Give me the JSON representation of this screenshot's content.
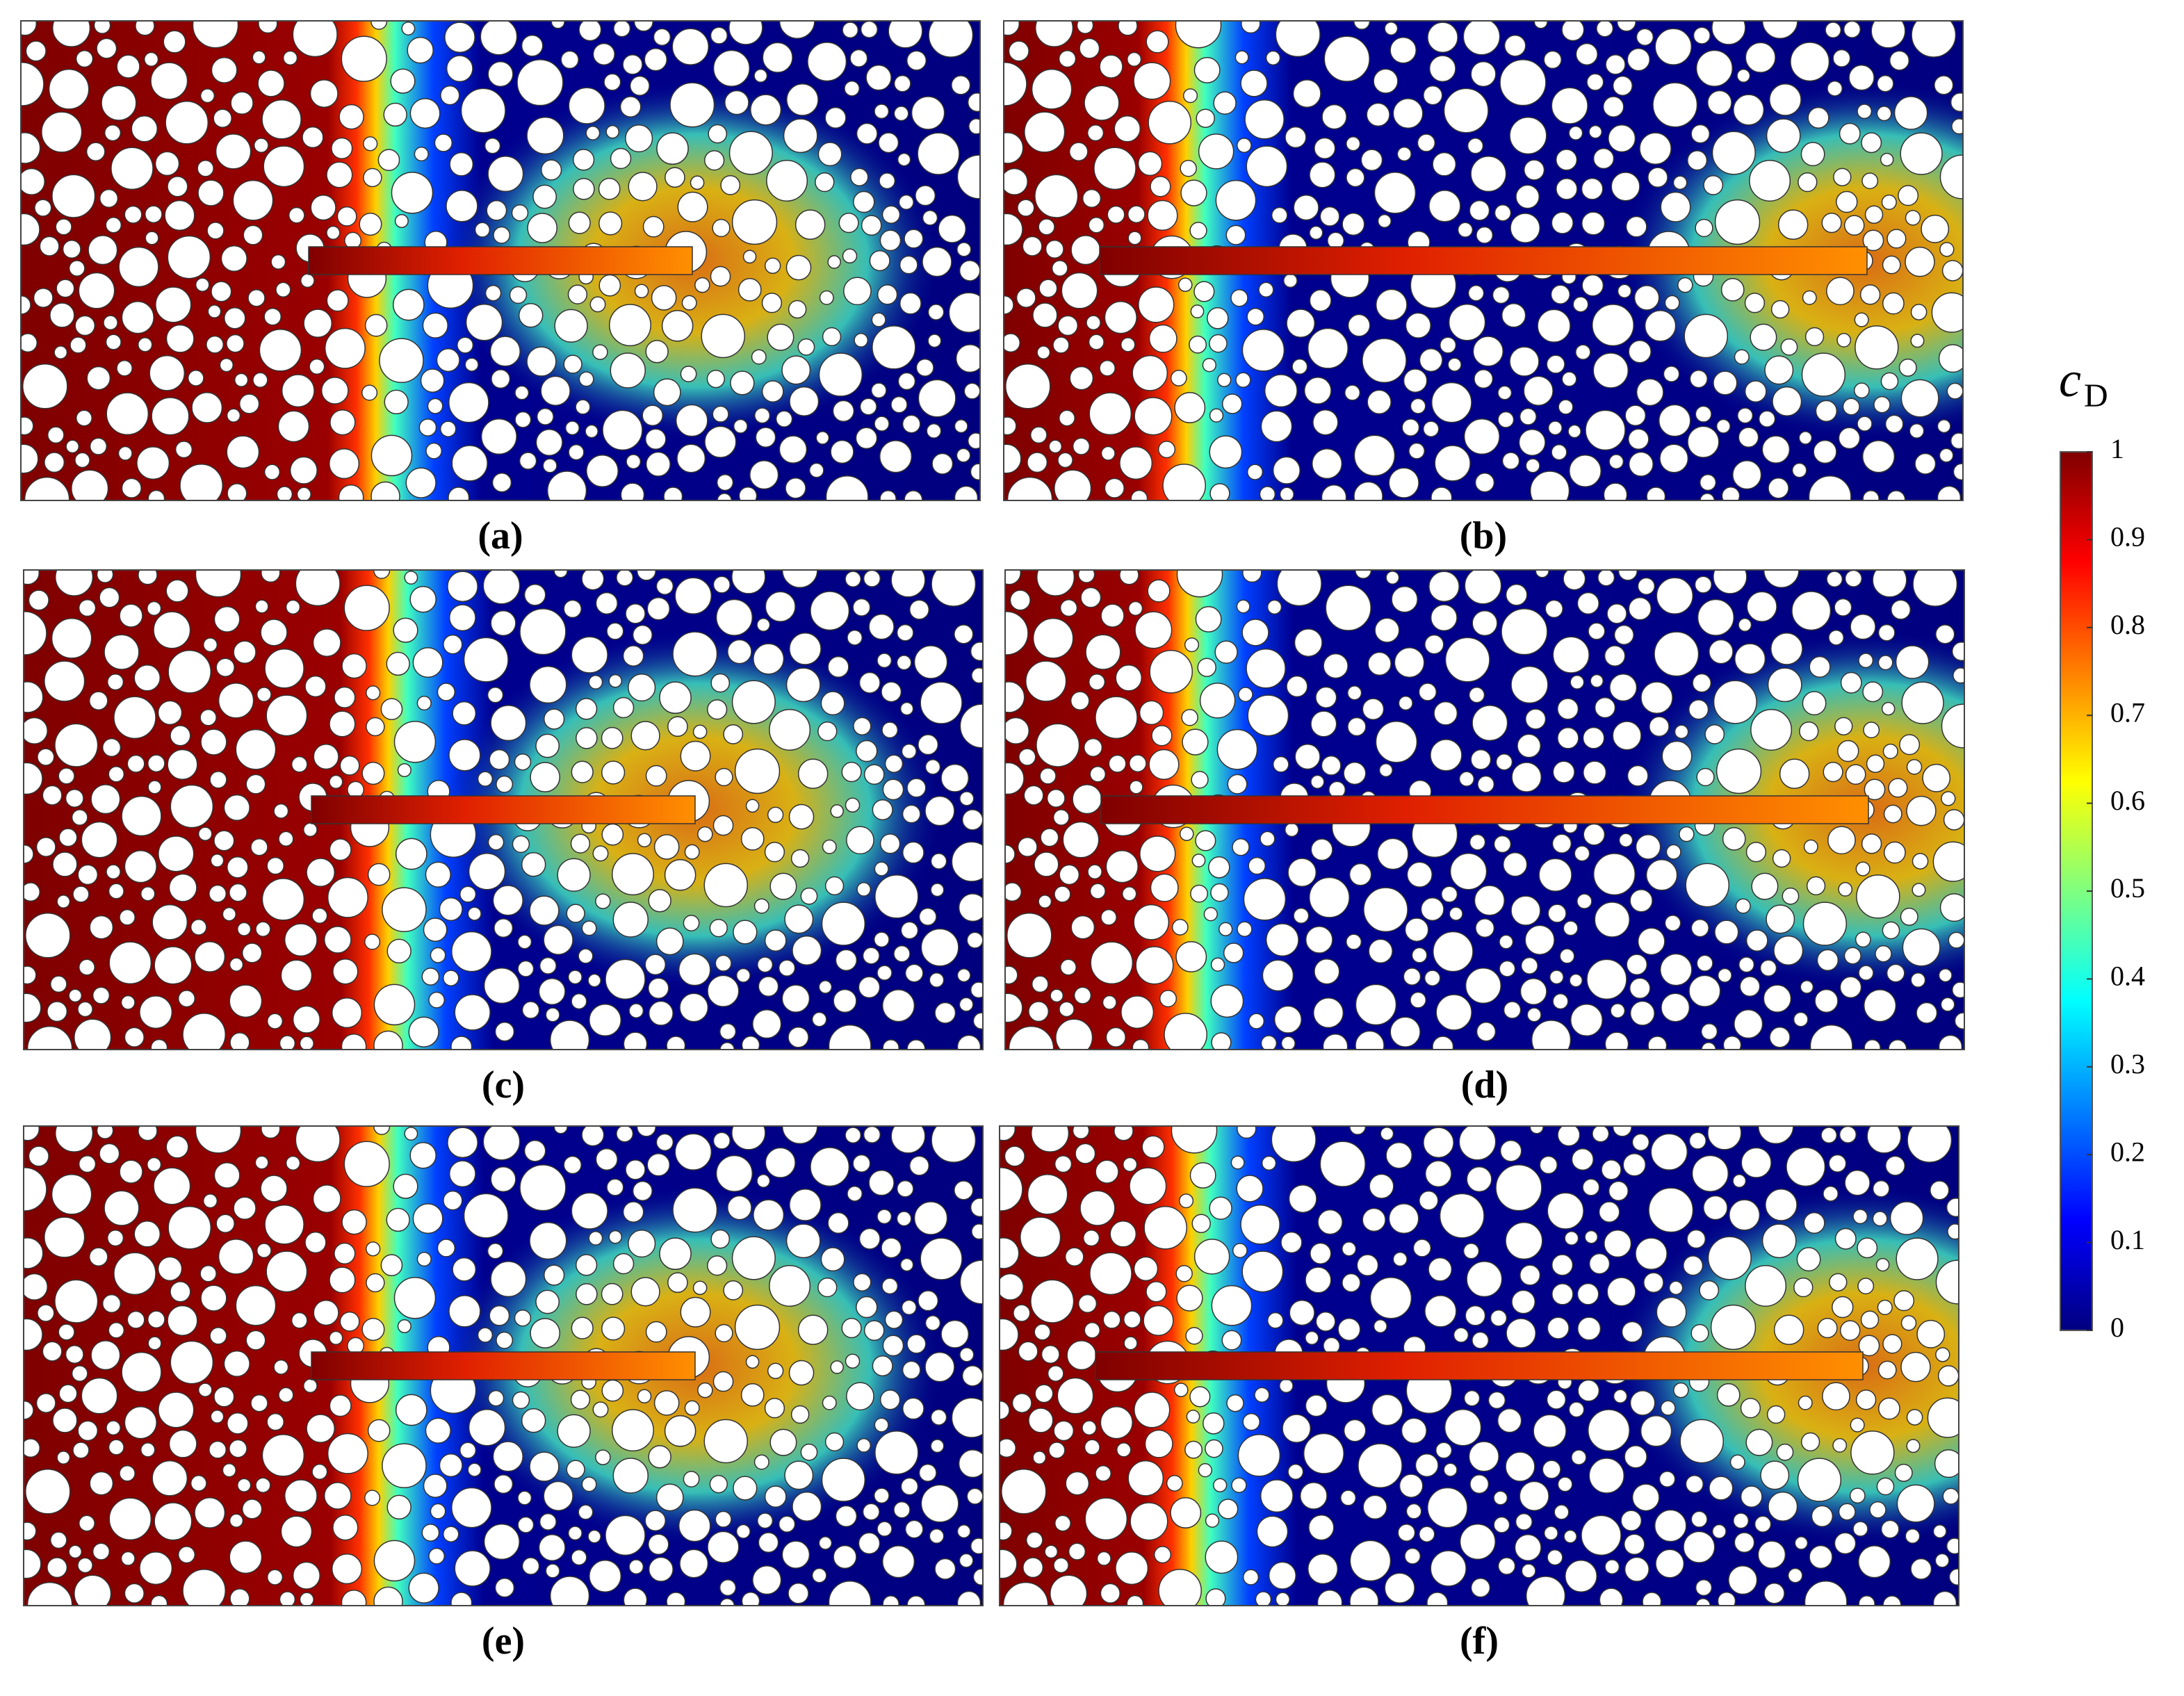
{
  "panels": [
    {
      "label": "(a)"
    },
    {
      "label": "(b)"
    },
    {
      "label": "(c)"
    },
    {
      "label": "(d)"
    },
    {
      "label": "(e)"
    },
    {
      "label": "(f)"
    }
  ],
  "colorbar": {
    "title": "c",
    "subscript": "D",
    "lim": [
      0,
      1
    ],
    "ticks": [
      0,
      0.1,
      0.2,
      0.3,
      0.4,
      0.5,
      0.6,
      0.7,
      0.8,
      0.9,
      1
    ]
  }
}
